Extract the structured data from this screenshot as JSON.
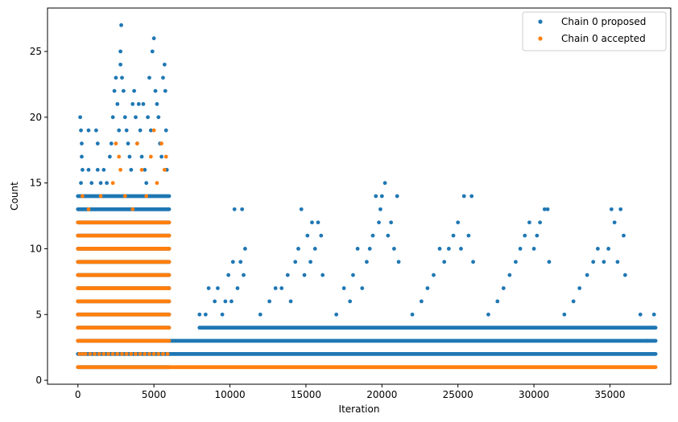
{
  "chart_data": {
    "type": "scatter",
    "title": "",
    "xlabel": "Iteration",
    "ylabel": "Count",
    "xlim": [
      -2000,
      39000
    ],
    "ylim": [
      -0.3,
      28.3
    ],
    "x_ticks": [
      0,
      5000,
      10000,
      15000,
      20000,
      25000,
      30000,
      35000
    ],
    "x_tick_labels": [
      "0",
      "5000",
      "10000",
      "15000",
      "20000",
      "25000",
      "30000",
      "35000"
    ],
    "y_ticks": [
      0,
      5,
      10,
      15,
      20,
      25
    ],
    "y_tick_labels": [
      "0",
      "5",
      "10",
      "15",
      "20",
      "25"
    ],
    "grid": false,
    "legend_position": "top-right",
    "series": [
      {
        "name": "Chain 0 proposed",
        "color": "#1f77b4",
        "marker": "circle",
        "bands": [
          {
            "x_start": 0,
            "x_end": 6000,
            "y_min": 1,
            "y_max": 14
          },
          {
            "x_start": 6000,
            "x_end": 38000,
            "y_min": 2,
            "y_max": 3
          },
          {
            "x_start": 8000,
            "x_end": 38000,
            "y_min": 4,
            "y_max": 4
          }
        ],
        "points": [
          {
            "x": 150,
            "y": 20
          },
          {
            "x": 200,
            "y": 19
          },
          {
            "x": 250,
            "y": 18
          },
          {
            "x": 250,
            "y": 17
          },
          {
            "x": 300,
            "y": 16
          },
          {
            "x": 200,
            "y": 15
          },
          {
            "x": 700,
            "y": 19
          },
          {
            "x": 700,
            "y": 16
          },
          {
            "x": 900,
            "y": 15
          },
          {
            "x": 1200,
            "y": 19
          },
          {
            "x": 1300,
            "y": 18
          },
          {
            "x": 1300,
            "y": 16
          },
          {
            "x": 1500,
            "y": 15
          },
          {
            "x": 1700,
            "y": 16
          },
          {
            "x": 1900,
            "y": 15
          },
          {
            "x": 2100,
            "y": 17
          },
          {
            "x": 2200,
            "y": 18
          },
          {
            "x": 2300,
            "y": 20
          },
          {
            "x": 2400,
            "y": 22
          },
          {
            "x": 2500,
            "y": 23
          },
          {
            "x": 2600,
            "y": 21
          },
          {
            "x": 2700,
            "y": 19
          },
          {
            "x": 2800,
            "y": 24
          },
          {
            "x": 2800,
            "y": 25
          },
          {
            "x": 2850,
            "y": 27
          },
          {
            "x": 2900,
            "y": 23
          },
          {
            "x": 3000,
            "y": 22
          },
          {
            "x": 3100,
            "y": 20
          },
          {
            "x": 3200,
            "y": 19
          },
          {
            "x": 3300,
            "y": 18
          },
          {
            "x": 3400,
            "y": 17
          },
          {
            "x": 3500,
            "y": 16
          },
          {
            "x": 3600,
            "y": 21
          },
          {
            "x": 3700,
            "y": 22
          },
          {
            "x": 3800,
            "y": 20
          },
          {
            "x": 3900,
            "y": 18
          },
          {
            "x": 4000,
            "y": 21
          },
          {
            "x": 4100,
            "y": 19
          },
          {
            "x": 4200,
            "y": 17
          },
          {
            "x": 4300,
            "y": 21
          },
          {
            "x": 4400,
            "y": 16
          },
          {
            "x": 4500,
            "y": 15
          },
          {
            "x": 4600,
            "y": 20
          },
          {
            "x": 4700,
            "y": 23
          },
          {
            "x": 4800,
            "y": 19
          },
          {
            "x": 4900,
            "y": 25
          },
          {
            "x": 5000,
            "y": 26
          },
          {
            "x": 5100,
            "y": 22
          },
          {
            "x": 5200,
            "y": 21
          },
          {
            "x": 5300,
            "y": 20
          },
          {
            "x": 5400,
            "y": 18
          },
          {
            "x": 5500,
            "y": 17
          },
          {
            "x": 5600,
            "y": 23
          },
          {
            "x": 5700,
            "y": 24
          },
          {
            "x": 5750,
            "y": 22
          },
          {
            "x": 5800,
            "y": 19
          },
          {
            "x": 5850,
            "y": 16
          },
          {
            "x": 8000,
            "y": 5
          },
          {
            "x": 8400,
            "y": 5
          },
          {
            "x": 8600,
            "y": 7
          },
          {
            "x": 9000,
            "y": 6
          },
          {
            "x": 9200,
            "y": 7
          },
          {
            "x": 9500,
            "y": 5
          },
          {
            "x": 9700,
            "y": 6
          },
          {
            "x": 9900,
            "y": 8
          },
          {
            "x": 10100,
            "y": 6
          },
          {
            "x": 10200,
            "y": 9
          },
          {
            "x": 10300,
            "y": 13
          },
          {
            "x": 10500,
            "y": 7
          },
          {
            "x": 10700,
            "y": 9
          },
          {
            "x": 10800,
            "y": 13
          },
          {
            "x": 10900,
            "y": 8
          },
          {
            "x": 11000,
            "y": 10
          },
          {
            "x": 12000,
            "y": 5
          },
          {
            "x": 12600,
            "y": 6
          },
          {
            "x": 13000,
            "y": 7
          },
          {
            "x": 13400,
            "y": 7
          },
          {
            "x": 13800,
            "y": 8
          },
          {
            "x": 14000,
            "y": 6
          },
          {
            "x": 14300,
            "y": 9
          },
          {
            "x": 14500,
            "y": 10
          },
          {
            "x": 14700,
            "y": 13
          },
          {
            "x": 14900,
            "y": 8
          },
          {
            "x": 15100,
            "y": 11
          },
          {
            "x": 15300,
            "y": 9
          },
          {
            "x": 15400,
            "y": 12
          },
          {
            "x": 15600,
            "y": 10
          },
          {
            "x": 15800,
            "y": 12
          },
          {
            "x": 16000,
            "y": 11
          },
          {
            "x": 16100,
            "y": 8
          },
          {
            "x": 17000,
            "y": 5
          },
          {
            "x": 17500,
            "y": 7
          },
          {
            "x": 17900,
            "y": 6
          },
          {
            "x": 18100,
            "y": 8
          },
          {
            "x": 18400,
            "y": 10
          },
          {
            "x": 18700,
            "y": 7
          },
          {
            "x": 19000,
            "y": 9
          },
          {
            "x": 19200,
            "y": 10
          },
          {
            "x": 19400,
            "y": 11
          },
          {
            "x": 19600,
            "y": 14
          },
          {
            "x": 19800,
            "y": 12
          },
          {
            "x": 19900,
            "y": 13
          },
          {
            "x": 20000,
            "y": 14
          },
          {
            "x": 20200,
            "y": 15
          },
          {
            "x": 20400,
            "y": 11
          },
          {
            "x": 20600,
            "y": 12
          },
          {
            "x": 20800,
            "y": 10
          },
          {
            "x": 21000,
            "y": 14
          },
          {
            "x": 21100,
            "y": 9
          },
          {
            "x": 22000,
            "y": 5
          },
          {
            "x": 22600,
            "y": 6
          },
          {
            "x": 23000,
            "y": 7
          },
          {
            "x": 23400,
            "y": 8
          },
          {
            "x": 23800,
            "y": 10
          },
          {
            "x": 24100,
            "y": 9
          },
          {
            "x": 24400,
            "y": 10
          },
          {
            "x": 24700,
            "y": 11
          },
          {
            "x": 25000,
            "y": 12
          },
          {
            "x": 25200,
            "y": 10
          },
          {
            "x": 25400,
            "y": 14
          },
          {
            "x": 25700,
            "y": 11
          },
          {
            "x": 25900,
            "y": 14
          },
          {
            "x": 26000,
            "y": 9
          },
          {
            "x": 27000,
            "y": 5
          },
          {
            "x": 27600,
            "y": 6
          },
          {
            "x": 28000,
            "y": 7
          },
          {
            "x": 28400,
            "y": 8
          },
          {
            "x": 28800,
            "y": 9
          },
          {
            "x": 29100,
            "y": 10
          },
          {
            "x": 29400,
            "y": 11
          },
          {
            "x": 29700,
            "y": 12
          },
          {
            "x": 30000,
            "y": 10
          },
          {
            "x": 30200,
            "y": 11
          },
          {
            "x": 30400,
            "y": 12
          },
          {
            "x": 30700,
            "y": 13
          },
          {
            "x": 30900,
            "y": 13
          },
          {
            "x": 31000,
            "y": 9
          },
          {
            "x": 32000,
            "y": 5
          },
          {
            "x": 32600,
            "y": 6
          },
          {
            "x": 33000,
            "y": 7
          },
          {
            "x": 33500,
            "y": 8
          },
          {
            "x": 33900,
            "y": 9
          },
          {
            "x": 34200,
            "y": 10
          },
          {
            "x": 34600,
            "y": 9
          },
          {
            "x": 34900,
            "y": 10
          },
          {
            "x": 35100,
            "y": 13
          },
          {
            "x": 35300,
            "y": 12
          },
          {
            "x": 35500,
            "y": 9
          },
          {
            "x": 35700,
            "y": 13
          },
          {
            "x": 35900,
            "y": 11
          },
          {
            "x": 36000,
            "y": 8
          },
          {
            "x": 37000,
            "y": 5
          },
          {
            "x": 37400,
            "y": 3
          },
          {
            "x": 37700,
            "y": 4
          },
          {
            "x": 37900,
            "y": 5
          }
        ]
      },
      {
        "name": "Chain 0 accepted",
        "color": "#ff7f0e",
        "marker": "circle",
        "bands": [
          {
            "x_start": 0,
            "x_end": 6000,
            "y_min": 3,
            "y_max": 12
          },
          {
            "x_start": 0,
            "x_end": 38000,
            "y_min": 1,
            "y_max": 1
          }
        ],
        "points": [
          {
            "x": 100,
            "y": 2
          },
          {
            "x": 300,
            "y": 2
          },
          {
            "x": 500,
            "y": 2
          },
          {
            "x": 800,
            "y": 2
          },
          {
            "x": 1100,
            "y": 2
          },
          {
            "x": 1400,
            "y": 2
          },
          {
            "x": 1700,
            "y": 2
          },
          {
            "x": 2000,
            "y": 2
          },
          {
            "x": 2300,
            "y": 2
          },
          {
            "x": 2600,
            "y": 2
          },
          {
            "x": 2900,
            "y": 2
          },
          {
            "x": 3200,
            "y": 2
          },
          {
            "x": 3500,
            "y": 2
          },
          {
            "x": 3800,
            "y": 2
          },
          {
            "x": 4100,
            "y": 2
          },
          {
            "x": 4400,
            "y": 2
          },
          {
            "x": 4700,
            "y": 2
          },
          {
            "x": 5000,
            "y": 2
          },
          {
            "x": 5300,
            "y": 2
          },
          {
            "x": 5600,
            "y": 2
          },
          {
            "x": 5900,
            "y": 2
          },
          {
            "x": 300,
            "y": 14
          },
          {
            "x": 700,
            "y": 13
          },
          {
            "x": 1500,
            "y": 14
          },
          {
            "x": 2300,
            "y": 15
          },
          {
            "x": 2500,
            "y": 18
          },
          {
            "x": 2700,
            "y": 17
          },
          {
            "x": 2800,
            "y": 16
          },
          {
            "x": 3100,
            "y": 14
          },
          {
            "x": 3600,
            "y": 13
          },
          {
            "x": 3900,
            "y": 18
          },
          {
            "x": 4200,
            "y": 16
          },
          {
            "x": 4500,
            "y": 14
          },
          {
            "x": 4800,
            "y": 17
          },
          {
            "x": 5000,
            "y": 19
          },
          {
            "x": 5200,
            "y": 15
          },
          {
            "x": 5500,
            "y": 18
          },
          {
            "x": 5700,
            "y": 16
          },
          {
            "x": 5800,
            "y": 17
          }
        ]
      }
    ]
  }
}
